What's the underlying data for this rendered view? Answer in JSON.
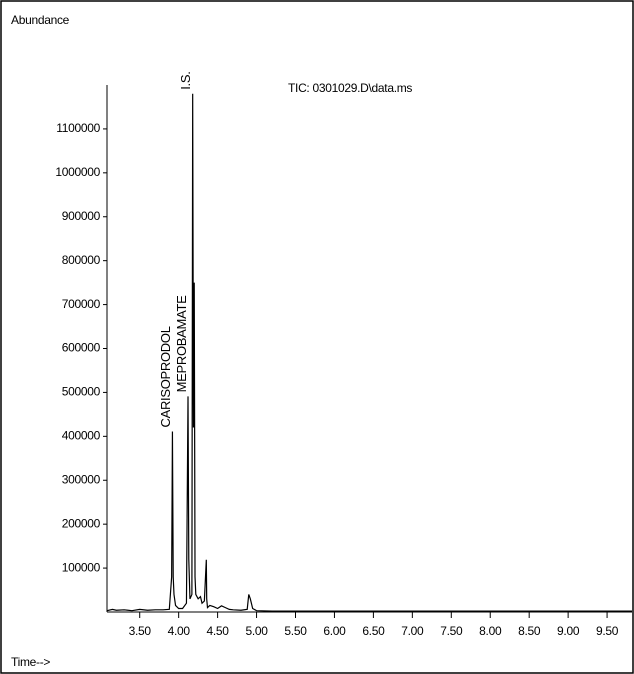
{
  "chart_data": {
    "type": "line",
    "title": "TIC: 0301029.D\\data.ms",
    "y_label": "Abundance",
    "x_label": "Time-->",
    "color": "#000000",
    "x": [
      3.08,
      3.15,
      3.2,
      3.3,
      3.4,
      3.5,
      3.6,
      3.7,
      3.8,
      3.88,
      3.91,
      3.92,
      3.93,
      3.94,
      3.96,
      4.0,
      4.05,
      4.1,
      4.12,
      4.13,
      4.145,
      4.17,
      4.18,
      4.19,
      4.2,
      4.21,
      4.22,
      4.25,
      4.28,
      4.3,
      4.33,
      4.355,
      4.36,
      4.37,
      4.4,
      4.45,
      4.5,
      4.55,
      4.6,
      4.65,
      4.7,
      4.8,
      4.88,
      4.9,
      4.92,
      4.95,
      5.0,
      5.2,
      5.5,
      6.0,
      7.0,
      8.0,
      9.0,
      9.82
    ],
    "values": [
      3000,
      6000,
      4000,
      5000,
      3000,
      6000,
      4000,
      5000,
      5000,
      6000,
      80000,
      411000,
      80000,
      40000,
      15000,
      8000,
      8000,
      20000,
      491000,
      120000,
      30000,
      40000,
      1180000,
      420000,
      750000,
      80000,
      40000,
      30000,
      35000,
      20000,
      25000,
      119000,
      30000,
      10000,
      15000,
      12000,
      8000,
      14000,
      10000,
      6000,
      5000,
      4000,
      6000,
      40000,
      30000,
      8000,
      3000,
      2000,
      2000,
      2000,
      2000,
      2000,
      2000,
      2000
    ],
    "annotations": [
      {
        "text": "CARISOPRODOL",
        "x": 3.92,
        "y": 411000
      },
      {
        "text": "MEPROBAMATE",
        "x": 4.13,
        "y": 491000
      },
      {
        "text": "I.S.",
        "x": 4.18,
        "y": 1180000
      }
    ],
    "xlim": [
      3.08,
      9.82
    ],
    "ylim": [
      0,
      1200000
    ],
    "xticks": [
      {
        "value": 3.5,
        "label": "3.50"
      },
      {
        "value": 4,
        "label": "4.00"
      },
      {
        "value": 4.5,
        "label": "4.50"
      },
      {
        "value": 5,
        "label": "5.00"
      },
      {
        "value": 5.5,
        "label": "5.50"
      },
      {
        "value": 6,
        "label": "6.00"
      },
      {
        "value": 6.5,
        "label": "6.50"
      },
      {
        "value": 7,
        "label": "7.00"
      },
      {
        "value": 7.5,
        "label": "7.50"
      },
      {
        "value": 8,
        "label": "8.00"
      },
      {
        "value": 8.5,
        "label": "8.50"
      },
      {
        "value": 9,
        "label": "9.00"
      },
      {
        "value": 9.5,
        "label": "9.50"
      }
    ],
    "yticks": [
      100000,
      200000,
      300000,
      400000,
      500000,
      600000,
      700000,
      800000,
      900000,
      1000000,
      1100000
    ]
  }
}
